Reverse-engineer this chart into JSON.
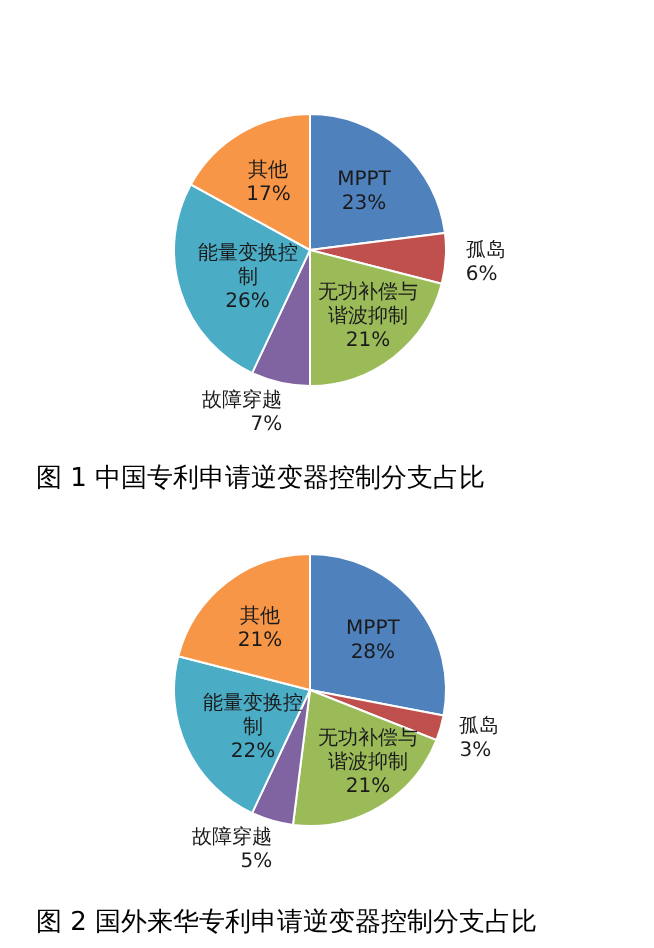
{
  "chart_data": [
    {
      "type": "pie",
      "title": "图 1 中国专利申请逆变器控制分支占比",
      "categories": [
        "MPPT",
        "孤岛",
        "无功补偿与谐波抑制",
        "故障穿越",
        "能量变换控制",
        "其他"
      ],
      "values": [
        23,
        6,
        21,
        7,
        26,
        17
      ],
      "value_labels": [
        "23%",
        "6%",
        "21%",
        "7%",
        "26%",
        "17%"
      ],
      "colors": [
        "#4f81bd",
        "#c0504d",
        "#9bbb59",
        "#8064a2",
        "#4bacc6",
        "#f79646"
      ]
    },
    {
      "type": "pie",
      "title": "图 2 国外来华专利申请逆变器控制分支占比",
      "categories": [
        "MPPT",
        "孤岛",
        "无功补偿与谐波抑制",
        "故障穿越",
        "能量变换控制",
        "其他"
      ],
      "values": [
        28,
        3,
        21,
        5,
        22,
        21
      ],
      "value_labels": [
        "28%",
        "3%",
        "21%",
        "5%",
        "22%",
        "21%"
      ],
      "colors": [
        "#4f81bd",
        "#c0504d",
        "#9bbb59",
        "#8064a2",
        "#4bacc6",
        "#f79646"
      ]
    }
  ]
}
